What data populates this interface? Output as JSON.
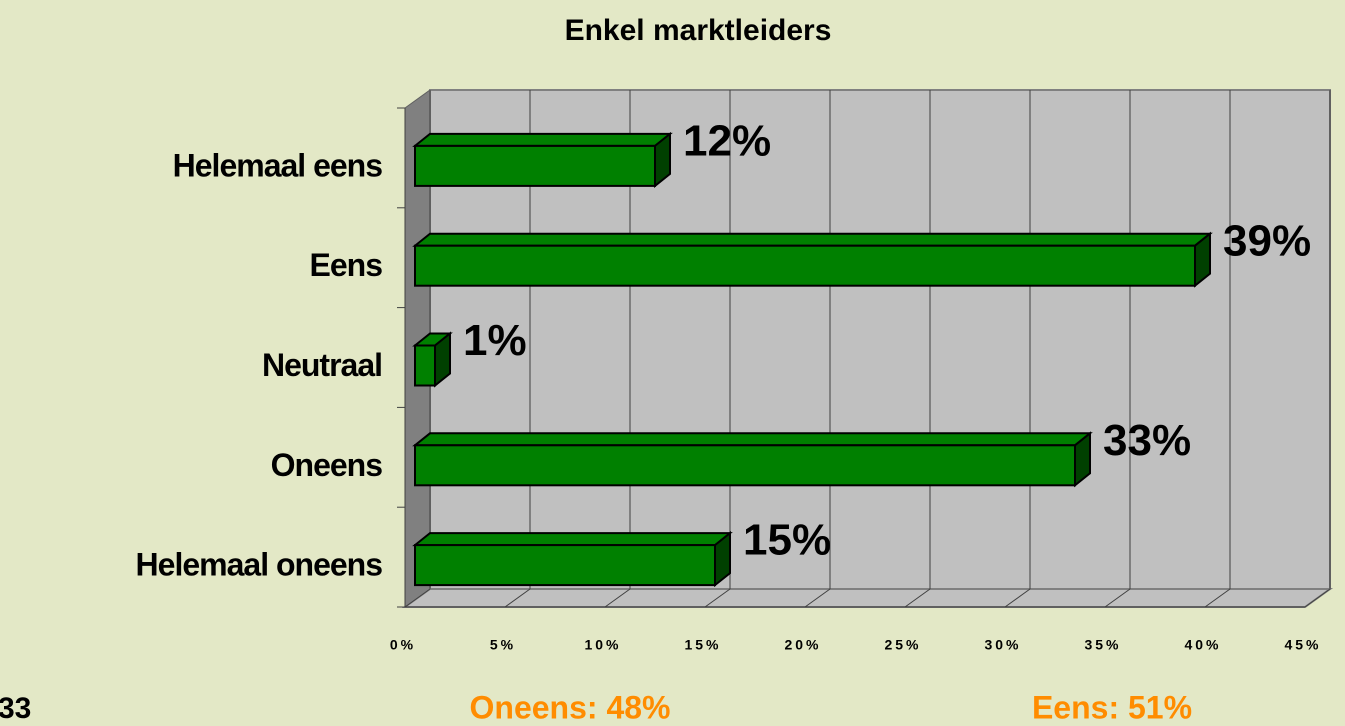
{
  "chart_data": {
    "type": "bar3d",
    "orientation": "horizontal",
    "title": "Enkel marktleiders",
    "categories": [
      "Helemaal eens",
      "Eens",
      "Neutraal",
      "Oneens",
      "Helemaal oneens"
    ],
    "values": [
      12,
      39,
      1,
      33,
      15
    ],
    "value_labels": [
      "12%",
      "39%",
      "1%",
      "33%",
      "15%"
    ],
    "color": "#008000",
    "xlim": [
      0,
      45
    ],
    "xticks": [
      {
        "value": 0,
        "label": "0%"
      },
      {
        "value": 5,
        "label": "5%"
      },
      {
        "value": 10,
        "label": "10%"
      },
      {
        "value": 15,
        "label": "15%"
      },
      {
        "value": 20,
        "label": "20%"
      },
      {
        "value": 25,
        "label": "25%"
      },
      {
        "value": 30,
        "label": "30%"
      },
      {
        "value": 35,
        "label": "35%"
      },
      {
        "value": 40,
        "label": "40%"
      },
      {
        "value": 45,
        "label": "45%"
      }
    ],
    "grid": true,
    "annotations": [
      "Oneens: 48%",
      "Eens: 51%"
    ]
  },
  "page_number": "33"
}
